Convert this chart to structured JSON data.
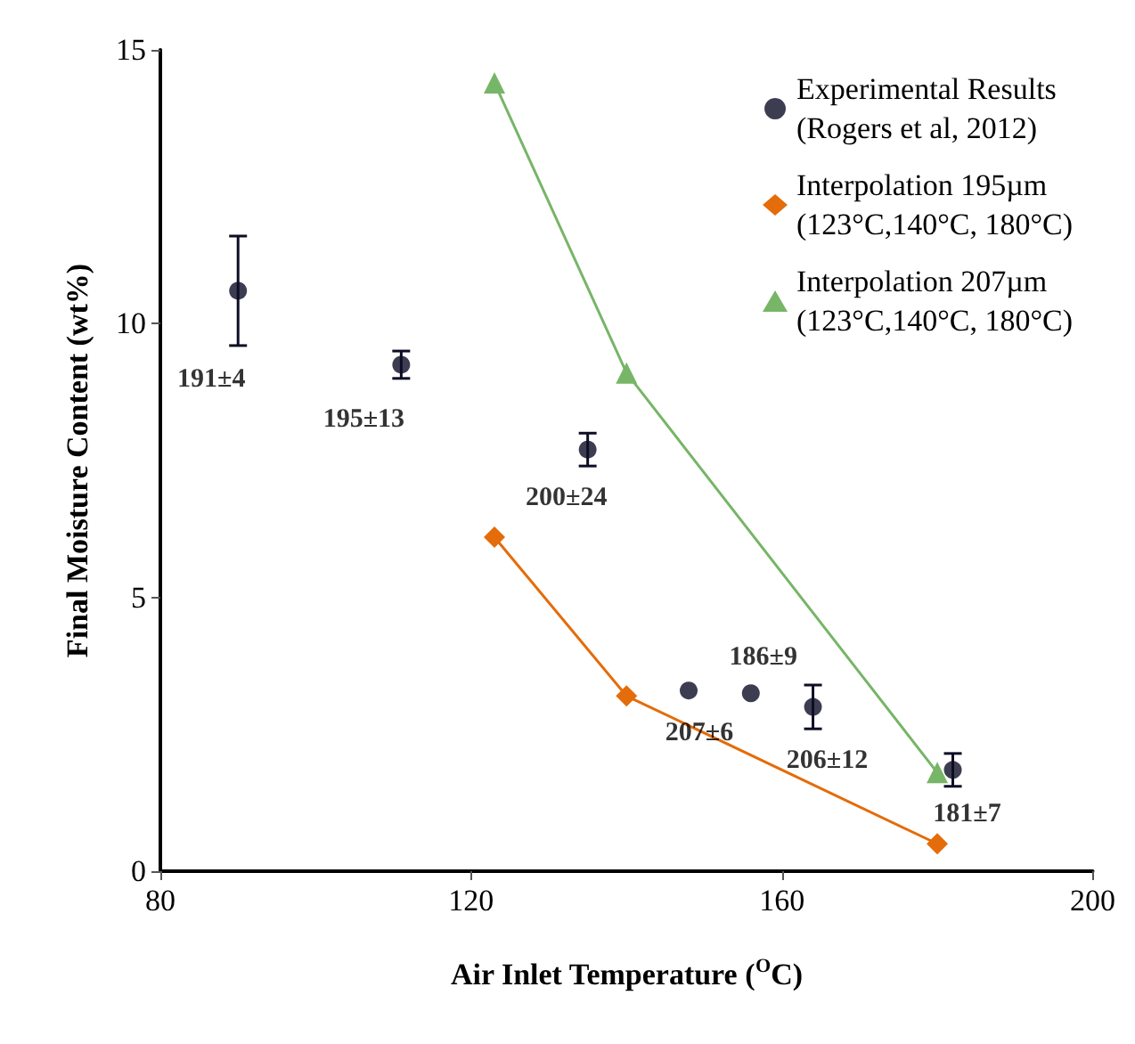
{
  "chart_data": {
    "type": "scatter",
    "xlabel": "Air Inlet Temperature ($^{O}$C)",
    "ylabel": "Final Moisture Content (wt%)",
    "xlim": [
      80,
      200
    ],
    "xticks": [
      80,
      120,
      160,
      200
    ],
    "ylim": [
      0,
      15
    ],
    "yticks": [
      0,
      5,
      10,
      15
    ],
    "grid": false,
    "legend": "top right",
    "series": [
      {
        "name": "Experimental Results\n(Rogers et al, 2012)",
        "marker": "circle",
        "color": "#0d0d26",
        "x": [
          90,
          111,
          135,
          148,
          156,
          164,
          182
        ],
        "values": [
          10.6,
          9.25,
          7.7,
          3.3,
          3.25,
          3.0,
          1.85
        ],
        "errors": [
          1.0,
          0.25,
          0.3,
          null,
          null,
          0.4,
          0.3
        ]
      },
      {
        "name": "Interpolation 195µm\n(123°C,140°C, 180°C)",
        "type": "line",
        "marker": "diamond",
        "color": "#e46c0a",
        "x": [
          123,
          140,
          180
        ],
        "values": [
          6.1,
          3.2,
          0.5
        ]
      },
      {
        "name": "Interpolation 207µm\n(123°C,140°C, 180°C)",
        "type": "line",
        "marker": "triangle",
        "color": "#77b567",
        "x": [
          123,
          140,
          180
        ],
        "values": [
          14.4,
          9.1,
          1.8
        ]
      }
    ],
    "annotations": [
      {
        "text": "191±4",
        "x": 90,
        "y": 10.6
      },
      {
        "text": "195±13",
        "x": 111,
        "y": 9.25
      },
      {
        "text": "200±24",
        "x": 135,
        "y": 7.7
      },
      {
        "text": "186±9",
        "x": 156,
        "y": 3.25
      },
      {
        "text": "207±6",
        "x": 148,
        "y": 3.3
      },
      {
        "text": "206±12",
        "x": 164,
        "y": 3.0
      },
      {
        "text": "181±7",
        "x": 182,
        "y": 1.85
      }
    ]
  }
}
